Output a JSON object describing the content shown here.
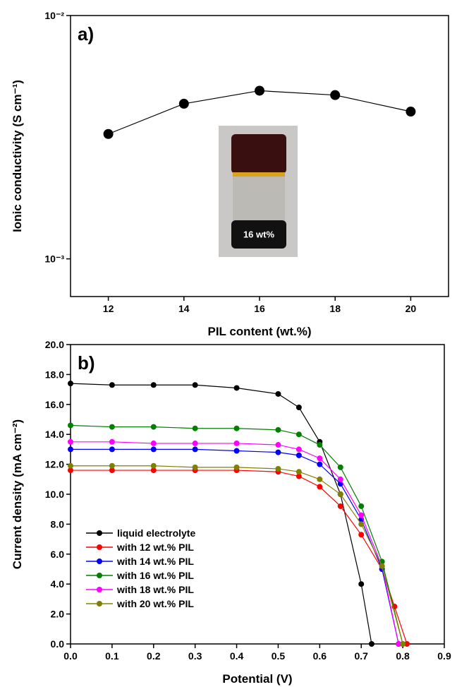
{
  "chart_data": [
    {
      "type": "scatter",
      "annotation": "a)",
      "inset_label": "16 wt%",
      "x_label": "PIL content (wt.%)",
      "y_label": "Ionic conductivity (S cm⁻¹)",
      "log_y": true,
      "xlim": [
        11,
        21
      ],
      "ylim": [
        0.0007,
        0.01
      ],
      "xticks": [
        12,
        14,
        16,
        18,
        20
      ],
      "yticks": [
        {
          "value": 0.001,
          "label": "10⁻³"
        },
        {
          "value": 0.01,
          "label": "10⁻²"
        }
      ],
      "connect": true,
      "color": "#000000",
      "x": [
        12,
        14,
        16,
        18,
        20
      ],
      "values": [
        0.00326,
        0.00434,
        0.00491,
        0.00471,
        0.00403
      ]
    },
    {
      "type": "line",
      "annotation": "b)",
      "x_label": "Potential (V)",
      "y_label": "Current density (mA cm⁻²)",
      "xlim": [
        0,
        0.9
      ],
      "ylim": [
        0,
        20
      ],
      "xticks": [
        {
          "value": 0,
          "label": "0.0"
        },
        0.1,
        0.2,
        0.3,
        0.4,
        0.5,
        0.6,
        0.7,
        0.8,
        0.9
      ],
      "yticks": [
        {
          "value": 0,
          "label": "0.0"
        },
        {
          "value": 2,
          "label": "2.0"
        },
        {
          "value": 4,
          "label": "4.0"
        },
        {
          "value": 6,
          "label": "6.0"
        },
        {
          "value": 8,
          "label": "8.0"
        },
        {
          "value": 10,
          "label": "10.0"
        },
        {
          "value": 12,
          "label": "12.0"
        },
        {
          "value": 14,
          "label": "14.0"
        },
        {
          "value": 16,
          "label": "16.0"
        },
        {
          "value": 18,
          "label": "18.0"
        },
        {
          "value": 20,
          "label": "20.0"
        }
      ],
      "series": [
        {
          "name": "liquid electrolyte",
          "color": "#000000",
          "x": [
            0,
            0.1,
            0.2,
            0.3,
            0.4,
            0.5,
            0.55,
            0.6,
            0.65,
            0.7,
            0.725
          ],
          "values": [
            17.4,
            17.3,
            17.3,
            17.3,
            17.1,
            16.7,
            15.8,
            13.5,
            10,
            4,
            0
          ]
        },
        {
          "name": "with 12 wt.% PIL",
          "color": "#ff0000",
          "x": [
            0,
            0.1,
            0.2,
            0.3,
            0.4,
            0.5,
            0.55,
            0.6,
            0.65,
            0.7,
            0.75,
            0.78,
            0.81
          ],
          "values": [
            11.6,
            11.6,
            11.6,
            11.6,
            11.6,
            11.5,
            11.2,
            10.5,
            9.2,
            7.3,
            5,
            2.5,
            0
          ]
        },
        {
          "name": "with 14 wt.% PIL",
          "color": "#0000ff",
          "x": [
            0,
            0.1,
            0.2,
            0.3,
            0.4,
            0.5,
            0.55,
            0.6,
            0.65,
            0.7,
            0.75,
            0.79
          ],
          "values": [
            13,
            13,
            13,
            13,
            12.9,
            12.8,
            12.6,
            12,
            10.7,
            8.3,
            5,
            0
          ]
        },
        {
          "name": "with 16 wt.% PIL",
          "color": "#008000",
          "x": [
            0,
            0.1,
            0.2,
            0.3,
            0.4,
            0.5,
            0.55,
            0.6,
            0.65,
            0.7,
            0.75,
            0.8
          ],
          "values": [
            14.6,
            14.5,
            14.5,
            14.4,
            14.4,
            14.3,
            14,
            13.3,
            11.8,
            9.2,
            5.5,
            0
          ]
        },
        {
          "name": "with 18 wt.% PIL",
          "color": "#ff00ff",
          "x": [
            0,
            0.1,
            0.2,
            0.3,
            0.4,
            0.5,
            0.55,
            0.6,
            0.65,
            0.7,
            0.75,
            0.79
          ],
          "values": [
            13.5,
            13.5,
            13.4,
            13.4,
            13.4,
            13.3,
            13,
            12.4,
            11,
            8.6,
            5.2,
            0
          ]
        },
        {
          "name": "with 20 wt.% PIL",
          "color": "#808000",
          "x": [
            0,
            0.1,
            0.2,
            0.3,
            0.4,
            0.5,
            0.55,
            0.6,
            0.65,
            0.7,
            0.75,
            0.8
          ],
          "values": [
            11.9,
            11.9,
            11.9,
            11.8,
            11.8,
            11.7,
            11.5,
            11,
            10,
            8,
            5.2,
            0
          ]
        }
      ]
    }
  ]
}
